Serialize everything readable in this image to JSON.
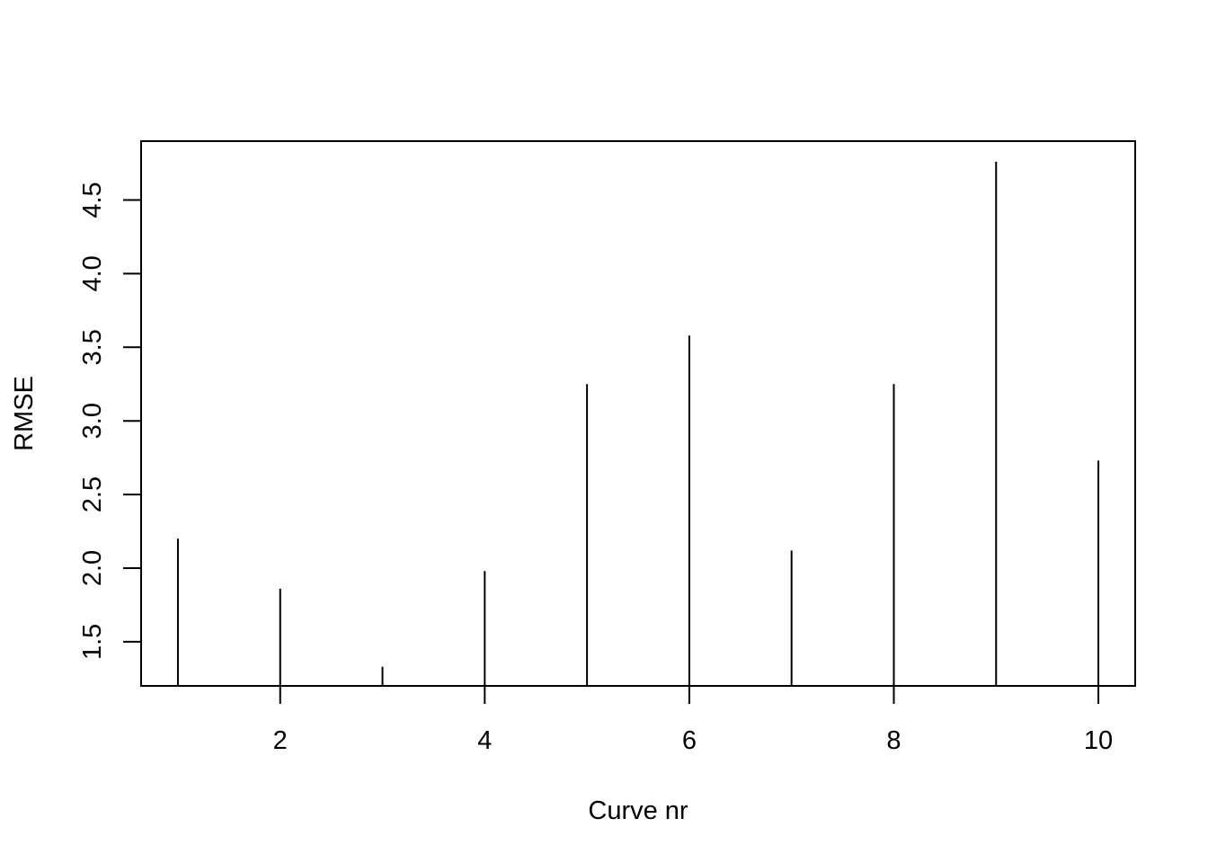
{
  "chart_data": {
    "type": "bar",
    "style": "histogram-spikes",
    "title": "",
    "xlabel": "Curve nr",
    "ylabel": "RMSE",
    "x": [
      1,
      2,
      3,
      4,
      5,
      6,
      7,
      8,
      9,
      10
    ],
    "values": [
      2.2,
      1.86,
      1.33,
      1.98,
      3.25,
      3.58,
      2.12,
      3.25,
      4.76,
      2.73
    ],
    "xlim": [
      0.64,
      10.36
    ],
    "ylim": [
      1.2,
      4.9
    ],
    "xticks": [
      2,
      4,
      6,
      8,
      10
    ],
    "yticks": [
      1.5,
      2.0,
      2.5,
      3.0,
      3.5,
      4.0,
      4.5
    ],
    "xtick_labels": [
      "2",
      "4",
      "6",
      "8",
      "10"
    ],
    "ytick_labels": [
      "1.5",
      "2.0",
      "2.5",
      "3.0",
      "3.5",
      "4.0",
      "4.5"
    ],
    "grid": false,
    "legend": "none",
    "color": "#000000"
  }
}
